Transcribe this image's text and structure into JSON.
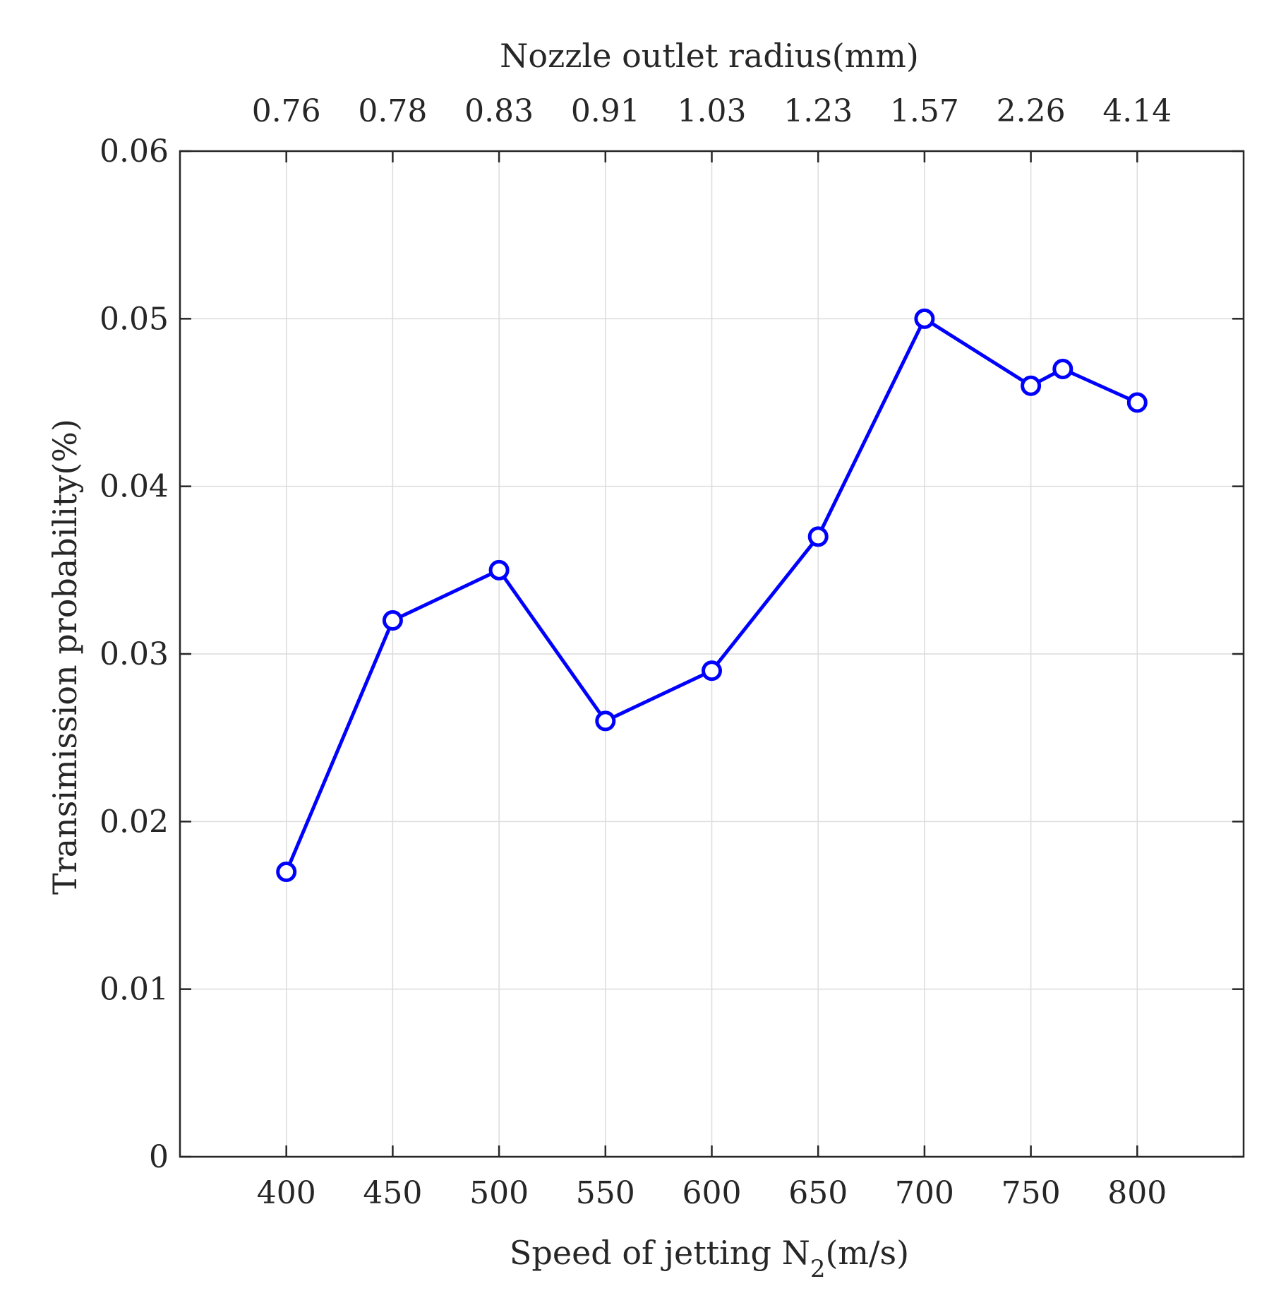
{
  "chart_data": {
    "type": "line",
    "xlabel": "Speed of jetting N",
    "xlabel_subscript": "2",
    "xlabel_suffix": "(m/s)",
    "ylabel": "Transimission probability(%)",
    "top_axis_label": "Nozzle outlet radius(mm)",
    "xlim": [
      350,
      850
    ],
    "ylim": [
      0,
      0.06
    ],
    "grid": true,
    "x_ticks": [
      400,
      450,
      500,
      550,
      600,
      650,
      700,
      750,
      800
    ],
    "x_tick_labels": [
      "400",
      "450",
      "500",
      "550",
      "600",
      "650",
      "700",
      "750",
      "800"
    ],
    "y_ticks": [
      0,
      0.01,
      0.02,
      0.03,
      0.04,
      0.05,
      0.06
    ],
    "y_tick_labels": [
      "0",
      "0.01",
      "0.02",
      "0.03",
      "0.04",
      "0.05",
      "0.06"
    ],
    "top_ticks": [
      400,
      450,
      500,
      550,
      600,
      650,
      700,
      750,
      800
    ],
    "top_tick_labels": [
      "0.76",
      "0.78",
      "0.83",
      "0.91",
      "1.03",
      "1.23",
      "1.57",
      "2.26",
      "4.14"
    ],
    "series": [
      {
        "color": "#0000ff",
        "marker": "circle",
        "x": [
          400,
          450,
          500,
          550,
          600,
          650,
          700,
          750,
          765,
          800
        ],
        "y": [
          0.017,
          0.032,
          0.035,
          0.026,
          0.029,
          0.037,
          0.05,
          0.046,
          0.047,
          0.045
        ]
      }
    ]
  }
}
